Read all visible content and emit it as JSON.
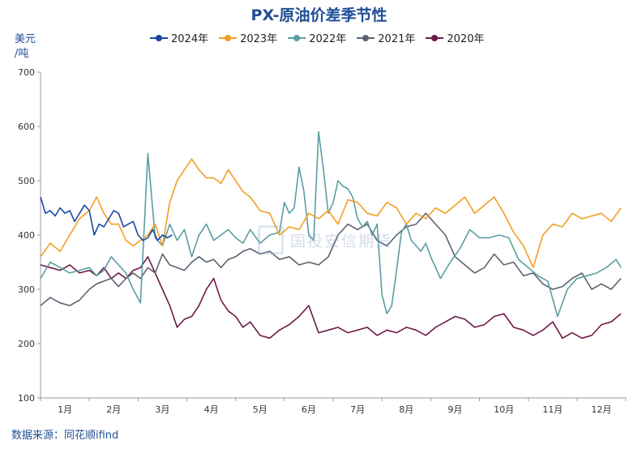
{
  "chart_data": {
    "type": "line",
    "title": "PX-原油价差季节性",
    "ylabel_lines": [
      "美元",
      "/吨"
    ],
    "ylim": [
      100,
      700
    ],
    "yticks": [
      100,
      200,
      300,
      400,
      500,
      600,
      700
    ],
    "xlim": [
      0,
      12
    ],
    "months": [
      "1月",
      "2月",
      "3月",
      "4月",
      "5月",
      "6月",
      "7月",
      "8月",
      "9月",
      "10月",
      "11月",
      "12月"
    ],
    "grid": false,
    "legend_position": "top",
    "source": "数据来源：同花顺ifind",
    "watermark": "国投安信期货",
    "series": [
      {
        "name": "2024年",
        "color": "#1947a3",
        "x": [
          0.0,
          0.1,
          0.2,
          0.3,
          0.4,
          0.5,
          0.6,
          0.7,
          0.8,
          0.9,
          1.0,
          1.1,
          1.2,
          1.3,
          1.4,
          1.5,
          1.6,
          1.7,
          1.8,
          1.9,
          2.0,
          2.1,
          2.2,
          2.3,
          2.4,
          2.5,
          2.6,
          2.7
        ],
        "y": [
          470,
          440,
          445,
          435,
          450,
          440,
          445,
          425,
          440,
          455,
          445,
          400,
          420,
          415,
          430,
          445,
          440,
          415,
          420,
          425,
          400,
          390,
          395,
          410,
          390,
          400,
          395,
          400
        ]
      },
      {
        "name": "2023年",
        "color": "#f29f22",
        "x": [
          0.0,
          0.2,
          0.4,
          0.6,
          0.8,
          1.0,
          1.15,
          1.3,
          1.45,
          1.6,
          1.75,
          1.9,
          2.05,
          2.2,
          2.35,
          2.5,
          2.65,
          2.8,
          2.95,
          3.1,
          3.25,
          3.4,
          3.55,
          3.7,
          3.85,
          4.0,
          4.15,
          4.3,
          4.5,
          4.7,
          4.9,
          5.1,
          5.3,
          5.5,
          5.7,
          5.9,
          6.1,
          6.3,
          6.5,
          6.7,
          6.9,
          7.1,
          7.3,
          7.5,
          7.7,
          7.9,
          8.1,
          8.3,
          8.5,
          8.7,
          8.9,
          9.1,
          9.3,
          9.5,
          9.7,
          9.9,
          10.1,
          10.3,
          10.5,
          10.7,
          10.9,
          11.1,
          11.3,
          11.5,
          11.7,
          11.9
        ],
        "y": [
          360,
          385,
          370,
          400,
          430,
          445,
          470,
          440,
          420,
          420,
          390,
          380,
          390,
          400,
          420,
          380,
          460,
          500,
          520,
          540,
          520,
          505,
          505,
          495,
          520,
          500,
          480,
          470,
          445,
          440,
          400,
          415,
          410,
          440,
          430,
          445,
          420,
          465,
          460,
          440,
          435,
          460,
          450,
          420,
          440,
          430,
          450,
          440,
          455,
          470,
          440,
          455,
          470,
          440,
          405,
          380,
          340,
          400,
          420,
          415,
          440,
          430,
          435,
          440,
          425,
          450
        ]
      },
      {
        "name": "2022年",
        "color": "#5a9ea3",
        "x": [
          0.0,
          0.2,
          0.4,
          0.6,
          0.8,
          1.0,
          1.15,
          1.3,
          1.45,
          1.6,
          1.75,
          1.9,
          2.05,
          2.2,
          2.35,
          2.5,
          2.65,
          2.8,
          2.95,
          3.1,
          3.25,
          3.4,
          3.55,
          3.7,
          3.85,
          4.0,
          4.15,
          4.3,
          4.5,
          4.7,
          4.9,
          5.0,
          5.1,
          5.2,
          5.3,
          5.4,
          5.5,
          5.6,
          5.7,
          5.8,
          5.9,
          6.0,
          6.1,
          6.2,
          6.3,
          6.4,
          6.5,
          6.6,
          6.7,
          6.8,
          6.9,
          7.0,
          7.1,
          7.2,
          7.3,
          7.4,
          7.5,
          7.6,
          7.7,
          7.8,
          7.9,
          8.0,
          8.2,
          8.4,
          8.6,
          8.8,
          9.0,
          9.2,
          9.4,
          9.6,
          9.8,
          10.0,
          10.2,
          10.4,
          10.6,
          10.8,
          11.0,
          11.2,
          11.4,
          11.6,
          11.8,
          11.9
        ],
        "y": [
          320,
          350,
          340,
          330,
          335,
          340,
          325,
          335,
          360,
          345,
          330,
          300,
          275,
          550,
          395,
          380,
          420,
          390,
          410,
          360,
          400,
          420,
          390,
          400,
          410,
          395,
          385,
          410,
          385,
          400,
          405,
          460,
          440,
          450,
          525,
          480,
          400,
          390,
          590,
          520,
          440,
          460,
          500,
          490,
          485,
          470,
          430,
          415,
          425,
          400,
          420,
          290,
          255,
          270,
          335,
          405,
          420,
          390,
          380,
          370,
          385,
          360,
          320,
          350,
          375,
          410,
          395,
          395,
          400,
          395,
          355,
          340,
          325,
          315,
          250,
          300,
          320,
          325,
          330,
          340,
          355,
          340
        ]
      },
      {
        "name": "2021年",
        "color": "#5a6470",
        "x": [
          0.0,
          0.2,
          0.4,
          0.6,
          0.8,
          1.0,
          1.15,
          1.3,
          1.45,
          1.6,
          1.75,
          1.9,
          2.05,
          2.2,
          2.35,
          2.5,
          2.65,
          2.8,
          2.95,
          3.1,
          3.25,
          3.4,
          3.55,
          3.7,
          3.85,
          4.0,
          4.15,
          4.3,
          4.5,
          4.7,
          4.9,
          5.1,
          5.3,
          5.5,
          5.7,
          5.9,
          6.1,
          6.3,
          6.5,
          6.7,
          6.9,
          7.1,
          7.3,
          7.5,
          7.7,
          7.9,
          8.1,
          8.3,
          8.5,
          8.7,
          8.9,
          9.1,
          9.3,
          9.5,
          9.7,
          9.9,
          10.1,
          10.3,
          10.5,
          10.7,
          10.9,
          11.1,
          11.3,
          11.5,
          11.7,
          11.9
        ],
        "y": [
          270,
          285,
          275,
          270,
          280,
          300,
          310,
          315,
          320,
          305,
          320,
          330,
          320,
          340,
          330,
          365,
          345,
          340,
          335,
          350,
          360,
          350,
          355,
          340,
          355,
          360,
          370,
          375,
          365,
          370,
          355,
          360,
          345,
          350,
          345,
          360,
          400,
          420,
          410,
          420,
          390,
          380,
          400,
          415,
          420,
          440,
          420,
          400,
          360,
          345,
          330,
          340,
          365,
          345,
          350,
          325,
          330,
          310,
          300,
          305,
          320,
          330,
          300,
          310,
          300,
          320
        ]
      },
      {
        "name": "2020年",
        "color": "#6e1a48",
        "x": [
          0.0,
          0.2,
          0.4,
          0.6,
          0.8,
          1.0,
          1.15,
          1.3,
          1.45,
          1.6,
          1.75,
          1.9,
          2.05,
          2.2,
          2.35,
          2.5,
          2.65,
          2.8,
          2.95,
          3.1,
          3.25,
          3.4,
          3.55,
          3.7,
          3.85,
          4.0,
          4.15,
          4.3,
          4.5,
          4.7,
          4.9,
          5.1,
          5.3,
          5.5,
          5.7,
          5.9,
          6.1,
          6.3,
          6.5,
          6.7,
          6.9,
          7.1,
          7.3,
          7.5,
          7.7,
          7.9,
          8.1,
          8.3,
          8.5,
          8.7,
          8.9,
          9.1,
          9.3,
          9.5,
          9.7,
          9.9,
          10.1,
          10.3,
          10.5,
          10.7,
          10.9,
          11.1,
          11.3,
          11.5,
          11.7,
          11.9
        ],
        "y": [
          345,
          340,
          335,
          345,
          330,
          335,
          325,
          340,
          320,
          330,
          320,
          335,
          340,
          360,
          330,
          300,
          270,
          230,
          245,
          250,
          270,
          300,
          320,
          280,
          260,
          250,
          230,
          240,
          215,
          210,
          225,
          235,
          250,
          270,
          220,
          225,
          230,
          220,
          225,
          230,
          215,
          225,
          220,
          230,
          225,
          215,
          230,
          240,
          250,
          245,
          230,
          235,
          250,
          255,
          230,
          225,
          215,
          225,
          240,
          210,
          220,
          210,
          215,
          235,
          240,
          255
        ]
      }
    ]
  }
}
